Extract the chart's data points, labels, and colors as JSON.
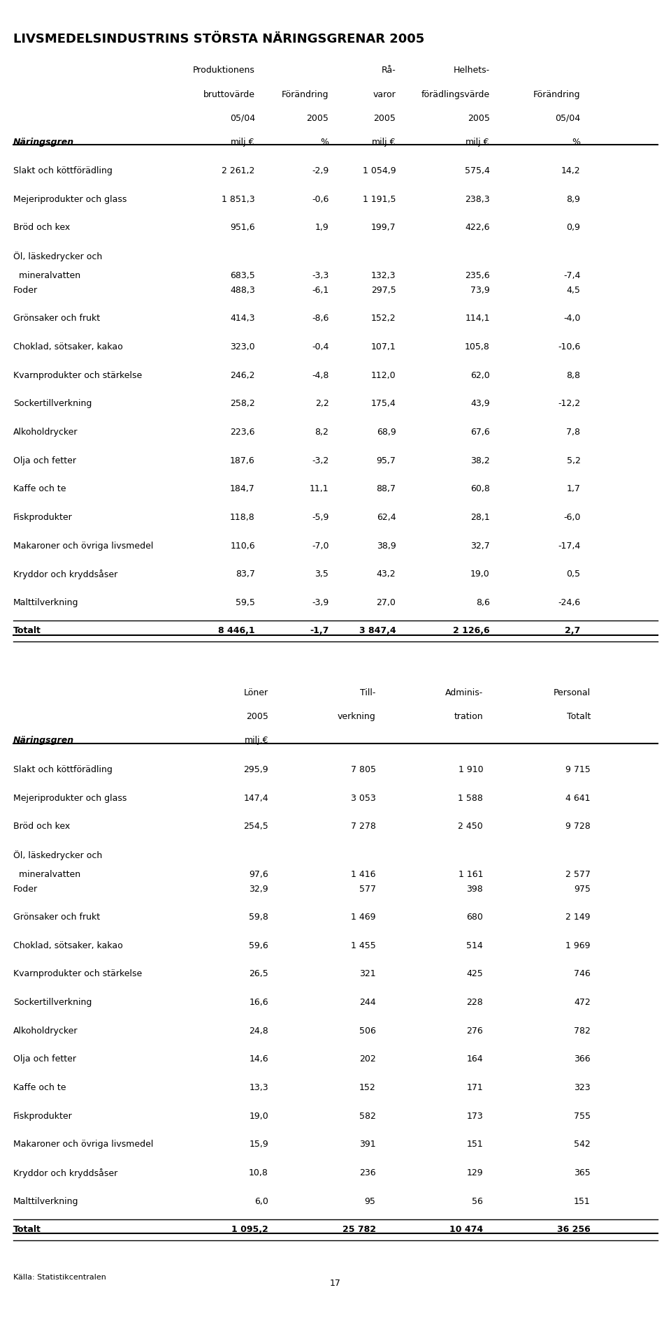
{
  "title": "LIVSMEDELSINDUSTRINS STÖRSTA NÄRINGSGRENAR 2005",
  "table1_headers_line1": [
    "Produktionens",
    "",
    "Rå-",
    "Helhets-",
    ""
  ],
  "table1_headers_line2": [
    "bruttovärde",
    "Förändring",
    "varor",
    "förädlingsvärde",
    "Förändring"
  ],
  "table1_headers_line3": [
    "05/04",
    "2005",
    "2005",
    "2005",
    "05/04"
  ],
  "table1_col_label": "Näringsgren",
  "table1_units": [
    "milj.€",
    "%",
    "milj.€",
    "milj.€",
    "%"
  ],
  "table1_rows": [
    [
      "Slakt och köttförädling",
      "2 261,2",
      "-2,9",
      "1 054,9",
      "575,4",
      "14,2"
    ],
    [
      "Mejeriprodukter och glass",
      "1 851,3",
      "-0,6",
      "1 191,5",
      "238,3",
      "8,9"
    ],
    [
      "Bröd och kex",
      "951,6",
      "1,9",
      "199,7",
      "422,6",
      "0,9"
    ],
    [
      "Öl, läskedrycker och\n  mineralvatten",
      "683,5",
      "-3,3",
      "132,3",
      "235,6",
      "-7,4"
    ],
    [
      "Foder",
      "488,3",
      "-6,1",
      "297,5",
      "73,9",
      "4,5"
    ],
    [
      "Grönsaker och frukt",
      "414,3",
      "-8,6",
      "152,2",
      "114,1",
      "-4,0"
    ],
    [
      "Choklad, sötsaker, kakao",
      "323,0",
      "-0,4",
      "107,1",
      "105,8",
      "-10,6"
    ],
    [
      "Kvarnprodukter och stärkelse",
      "246,2",
      "-4,8",
      "112,0",
      "62,0",
      "8,8"
    ],
    [
      "Sockertillverkning",
      "258,2",
      "2,2",
      "175,4",
      "43,9",
      "-12,2"
    ],
    [
      "Alkoholdrycker",
      "223,6",
      "8,2",
      "68,9",
      "67,6",
      "7,8"
    ],
    [
      "Olja och fetter",
      "187,6",
      "-3,2",
      "95,7",
      "38,2",
      "5,2"
    ],
    [
      "Kaffe och te",
      "184,7",
      "11,1",
      "88,7",
      "60,8",
      "1,7"
    ],
    [
      "Fiskprodukter",
      "118,8",
      "-5,9",
      "62,4",
      "28,1",
      "-6,0"
    ],
    [
      "Makaroner och övriga livsmedel",
      "110,6",
      "-7,0",
      "38,9",
      "32,7",
      "-17,4"
    ],
    [
      "Kryddor och kryddsåser",
      "83,7",
      "3,5",
      "43,2",
      "19,0",
      "0,5"
    ],
    [
      "Malttilverkning",
      "59,5",
      "-3,9",
      "27,0",
      "8,6",
      "-24,6"
    ]
  ],
  "table1_total": [
    "Totalt",
    "8 446,1",
    "-1,7",
    "3 847,4",
    "2 126,6",
    "2,7"
  ],
  "table2_headers_line1": [
    "Löner",
    "Till-",
    "Adminis-",
    "Personal"
  ],
  "table2_headers_line2": [
    "2005",
    "verkning",
    "tration",
    "Totalt"
  ],
  "table2_col_label": "Näringsgren",
  "table2_units": [
    "milj.€",
    "",
    "",
    ""
  ],
  "table2_rows": [
    [
      "Slakt och köttförädling",
      "295,9",
      "7 805",
      "1 910",
      "9 715"
    ],
    [
      "Mejeriprodukter och glass",
      "147,4",
      "3 053",
      "1 588",
      "4 641"
    ],
    [
      "Bröd och kex",
      "254,5",
      "7 278",
      "2 450",
      "9 728"
    ],
    [
      "Öl, läskedrycker och\n  mineralvatten",
      "97,6",
      "1 416",
      "1 161",
      "2 577"
    ],
    [
      "Foder",
      "32,9",
      "577",
      "398",
      "975"
    ],
    [
      "Grönsaker och frukt",
      "59,8",
      "1 469",
      "680",
      "2 149"
    ],
    [
      "Choklad, sötsaker, kakao",
      "59,6",
      "1 455",
      "514",
      "1 969"
    ],
    [
      "Kvarnprodukter och stärkelse",
      "26,5",
      "321",
      "425",
      "746"
    ],
    [
      "Sockertillverkning",
      "16,6",
      "244",
      "228",
      "472"
    ],
    [
      "Alkoholdrycker",
      "24,8",
      "506",
      "276",
      "782"
    ],
    [
      "Olja och fetter",
      "14,6",
      "202",
      "164",
      "366"
    ],
    [
      "Kaffe och te",
      "13,3",
      "152",
      "171",
      "323"
    ],
    [
      "Fiskprodukter",
      "19,0",
      "582",
      "173",
      "755"
    ],
    [
      "Makaroner och övriga livsmedel",
      "15,9",
      "391",
      "151",
      "542"
    ],
    [
      "Kryddor och kryddsåser",
      "10,8",
      "236",
      "129",
      "365"
    ],
    [
      "Malttilverkning",
      "6,0",
      "95",
      "56",
      "151"
    ]
  ],
  "table2_total": [
    "Totalt",
    "1 095,2",
    "25 782",
    "10 474",
    "36 256"
  ],
  "footer": "Källa: Statistikcentralen",
  "page_number": "17"
}
